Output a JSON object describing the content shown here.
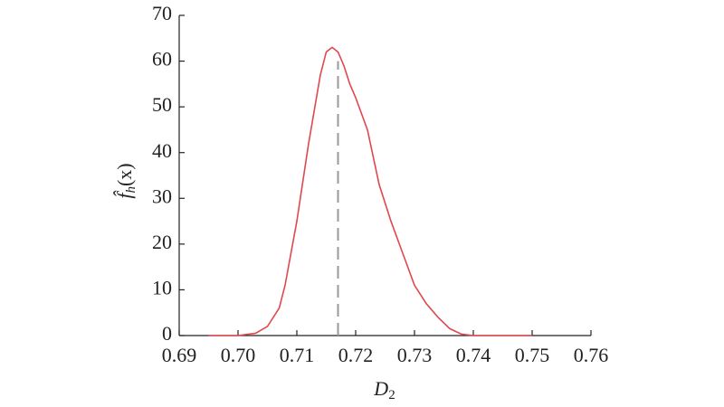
{
  "chart_data": {
    "type": "line",
    "x": [
      0.695,
      0.7,
      0.703,
      0.705,
      0.707,
      0.708,
      0.71,
      0.712,
      0.714,
      0.715,
      0.716,
      0.717,
      0.718,
      0.719,
      0.72,
      0.722,
      0.724,
      0.726,
      0.728,
      0.73,
      0.732,
      0.734,
      0.736,
      0.738,
      0.74,
      0.745,
      0.75
    ],
    "series": [
      {
        "color": "#e0474f",
        "values": [
          0,
          0,
          0.5,
          2,
          6,
          11,
          25,
          42,
          57,
          62,
          63,
          62,
          59,
          55,
          52,
          45,
          33,
          25,
          18,
          11,
          7,
          4,
          1.5,
          0.3,
          0,
          0,
          0
        ]
      }
    ],
    "marker": {
      "x": 0.717,
      "y": 60,
      "color": "#999999"
    },
    "xlabel": {
      "main": "D",
      "sub": "2"
    },
    "ylabel": {
      "main": "f̂",
      "sub": "h",
      "rest": "(x)"
    },
    "xlim": [
      0.69,
      0.76
    ],
    "ylim": [
      0,
      70
    ],
    "xticks": [
      0.69,
      {
        "value": 0.7,
        "label": "0.70"
      },
      0.71,
      0.72,
      0.73,
      0.74,
      0.75,
      0.76
    ],
    "yticks": [
      0,
      10,
      20,
      30,
      40,
      50,
      60,
      70
    ]
  }
}
